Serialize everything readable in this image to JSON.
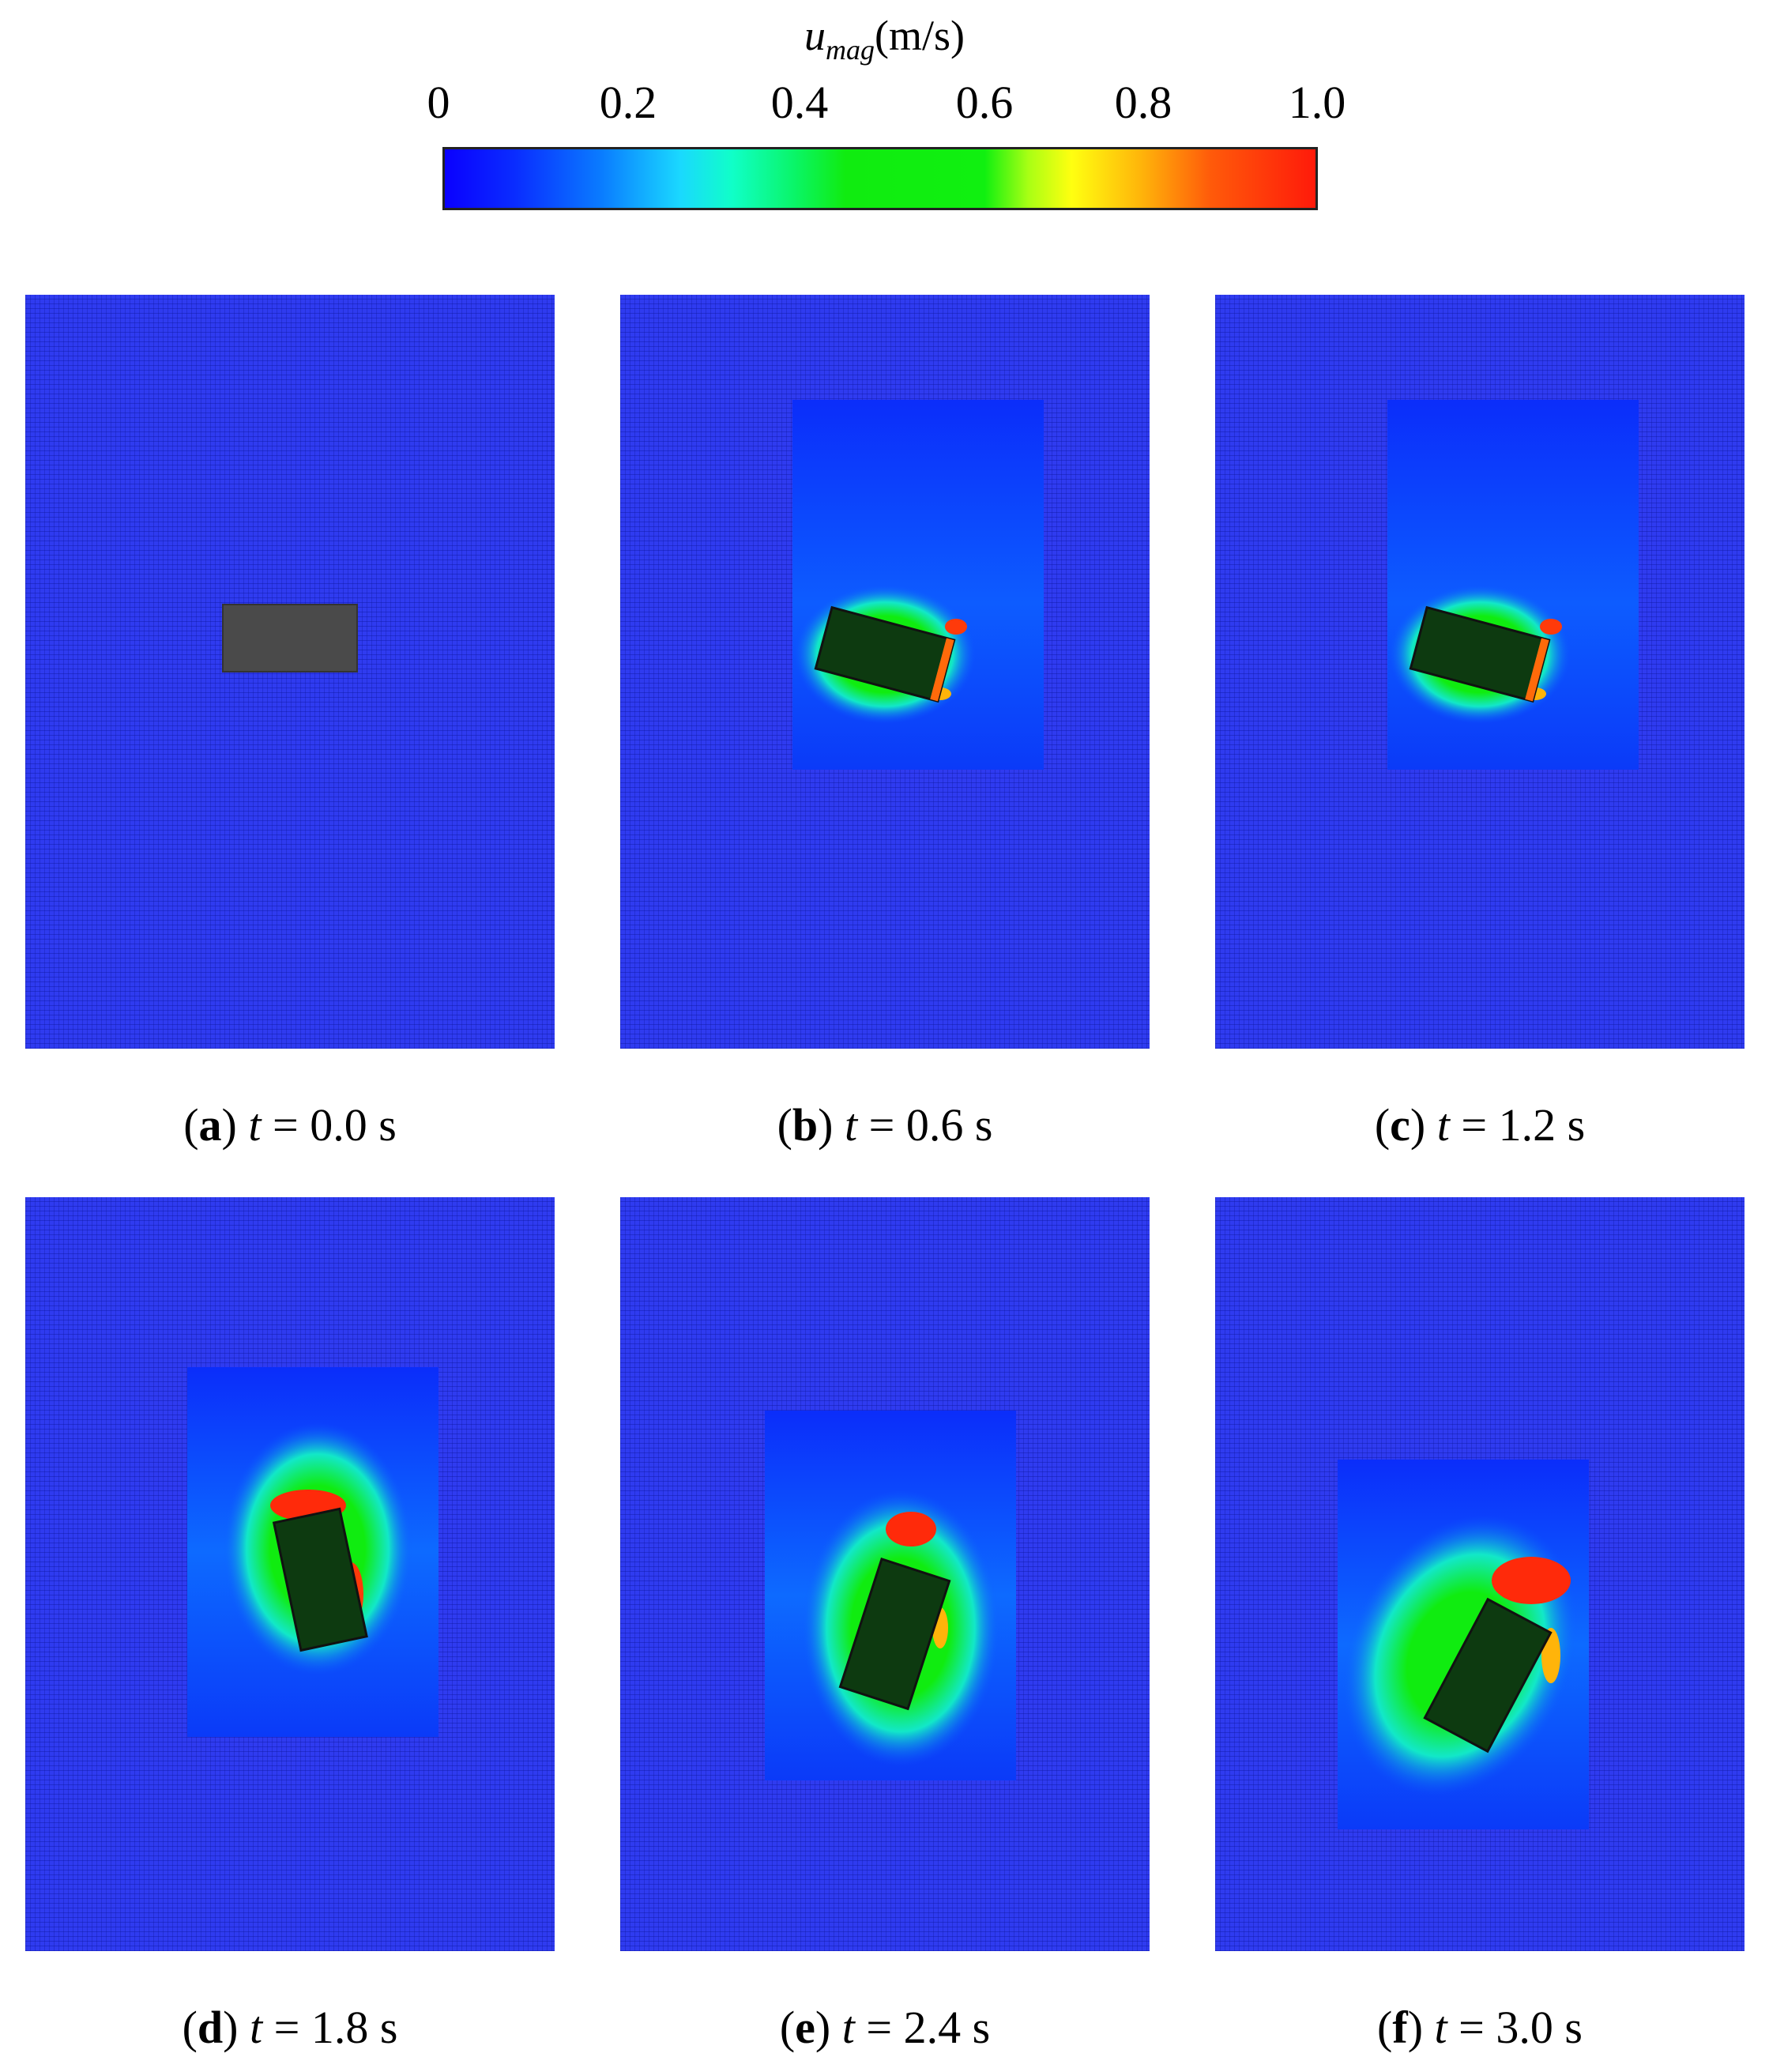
{
  "colorbar": {
    "var": "u",
    "sub": "mag",
    "unit": "(m/s)",
    "ticks": [
      "0",
      "0.2",
      "0.4",
      "0.6",
      "0.8",
      "1.0"
    ],
    "range": [
      0,
      1.0
    ],
    "colors": [
      "#0a00ff",
      "#1ad8ff",
      "#10ec10",
      "#ffff10",
      "#ff1a0a"
    ]
  },
  "panels": [
    {
      "label": "a",
      "t_symbol": "t",
      "eq": " = ",
      "time": "0.0",
      "unit": " s"
    },
    {
      "label": "b",
      "t_symbol": "t",
      "eq": " = ",
      "time": "0.6",
      "unit": " s"
    },
    {
      "label": "c",
      "t_symbol": "t",
      "eq": " = ",
      "time": "1.2",
      "unit": " s"
    },
    {
      "label": "d",
      "t_symbol": "t",
      "eq": " = ",
      "time": "1.8",
      "unit": " s"
    },
    {
      "label": "e",
      "t_symbol": "t",
      "eq": " = ",
      "time": "2.4",
      "unit": " s"
    },
    {
      "label": "f",
      "t_symbol": "t",
      "eq": " = ",
      "time": "3.0",
      "unit": " s"
    }
  ]
}
